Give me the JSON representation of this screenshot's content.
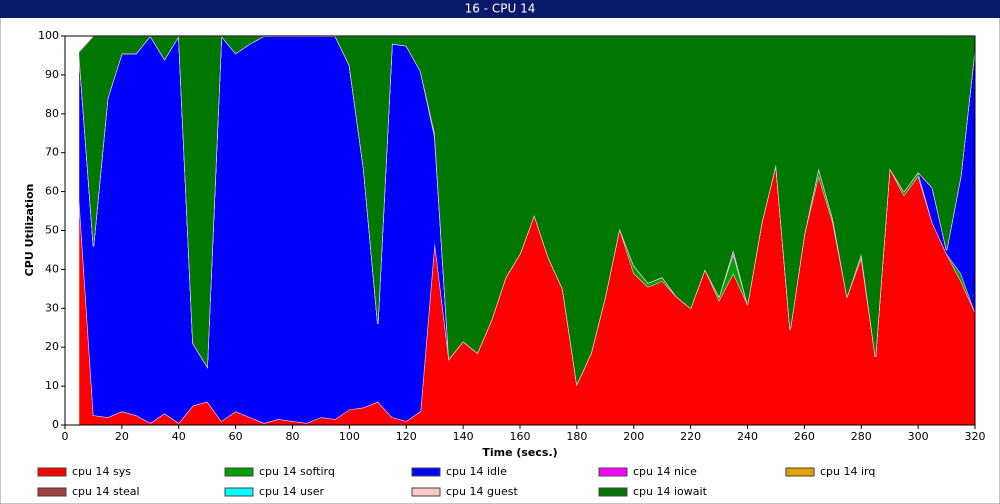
{
  "chart_data": {
    "type": "stacked_area",
    "title": "16 - CPU 14",
    "xlabel": "Time (secs.)",
    "ylabel": "CPU Utilization",
    "x": [
      5,
      10,
      15,
      20,
      25,
      30,
      35,
      40,
      45,
      50,
      55,
      60,
      65,
      70,
      75,
      80,
      85,
      90,
      95,
      100,
      105,
      110,
      115,
      120,
      125,
      130,
      135,
      140,
      145,
      150,
      155,
      160,
      165,
      170,
      175,
      180,
      185,
      190,
      195,
      200,
      205,
      210,
      215,
      220,
      225,
      230,
      235,
      240,
      245,
      250,
      255,
      260,
      265,
      270,
      275,
      280,
      285,
      290,
      295,
      300,
      305,
      310,
      315,
      320
    ],
    "xlim": [
      0,
      320
    ],
    "xticks": [
      0,
      20,
      40,
      60,
      80,
      100,
      120,
      140,
      160,
      180,
      200,
      220,
      240,
      260,
      280,
      300,
      320
    ],
    "ylim": [
      0,
      100
    ],
    "yticks": [
      0,
      10,
      20,
      30,
      40,
      50,
      60,
      70,
      80,
      90,
      100
    ],
    "series": [
      {
        "name": "cpu 14 sys",
        "color": "#ff0000",
        "values": [
          58,
          2.5,
          2,
          3.5,
          2.5,
          0.5,
          3,
          0.5,
          5,
          6,
          1,
          3.5,
          2,
          0.5,
          1.5,
          1,
          0.5,
          2,
          1.5,
          4,
          4.5,
          6,
          2,
          1,
          3.5,
          47,
          17,
          21.5,
          18.5,
          27,
          38,
          44,
          54,
          43,
          35,
          10.5,
          18.5,
          33,
          50.5,
          39,
          35.5,
          37,
          33,
          30,
          40,
          32,
          39,
          31,
          52,
          67,
          24.5,
          49,
          64,
          52,
          33,
          43,
          17.5,
          66,
          59,
          64,
          52,
          44,
          37,
          29
        ]
      },
      {
        "name": "cpu 14 softirq",
        "color": "#00a000",
        "values": [
          0,
          0,
          0,
          0,
          0,
          0,
          0,
          0,
          0,
          0,
          0,
          0,
          0,
          0,
          0,
          0,
          0,
          0,
          0,
          0,
          0,
          0,
          0,
          0,
          0,
          0,
          0,
          0,
          0,
          0,
          0,
          0,
          0,
          0,
          0,
          0,
          0,
          0,
          0,
          2,
          1,
          1,
          0,
          0,
          0,
          1,
          5,
          0,
          0,
          0,
          0,
          0,
          2,
          1,
          0,
          1,
          0,
          0,
          1,
          1,
          0,
          0,
          2,
          0
        ]
      },
      {
        "name": "cpu 14 idle",
        "color": "#0000ff",
        "values": [
          37,
          43.5,
          82,
          92,
          93,
          99.5,
          91,
          99.5,
          16,
          9,
          99,
          92,
          96,
          99.5,
          98.5,
          99,
          99.5,
          98,
          98.5,
          88.5,
          61.5,
          20,
          96,
          96.5,
          87.5,
          27,
          0,
          0,
          0,
          0,
          0,
          0,
          0,
          0,
          0,
          0,
          0,
          0,
          0,
          0,
          0,
          0,
          0,
          0,
          0,
          0,
          0,
          0,
          0,
          0,
          0,
          0,
          0,
          0,
          0,
          0,
          0,
          0,
          0,
          0,
          9,
          1,
          25,
          68
        ]
      },
      {
        "name": "cpu 14 nice",
        "color": "#ff00ff",
        "values": [
          0,
          0,
          0,
          0,
          0,
          0,
          0,
          0,
          0,
          0,
          0,
          0,
          0,
          0,
          0,
          0,
          0,
          0,
          0,
          0,
          0,
          0,
          0,
          0,
          0,
          1,
          0,
          0,
          0,
          0,
          0,
          0,
          0,
          0,
          0,
          0,
          0,
          0,
          0,
          0,
          0,
          0,
          0,
          0,
          0,
          0,
          1,
          0,
          0,
          0,
          0,
          0,
          0,
          0,
          0,
          0,
          0,
          0,
          0,
          0,
          0,
          0,
          0,
          0
        ]
      },
      {
        "name": "cpu 14 irq",
        "color": "#e8a000",
        "values": [
          0,
          0,
          0,
          0,
          0,
          0,
          0,
          0,
          0,
          0,
          0,
          0,
          0,
          0,
          0,
          0,
          0,
          0,
          0,
          0,
          0,
          0,
          0,
          0,
          0,
          0,
          0,
          0,
          0,
          0,
          0,
          0,
          0,
          0,
          0,
          0,
          0,
          0,
          0,
          0,
          0,
          0,
          0,
          0,
          0,
          0,
          0,
          0,
          0,
          0,
          0,
          0,
          0,
          0,
          0,
          0,
          0,
          0,
          0,
          0,
          0,
          0,
          0,
          0
        ]
      },
      {
        "name": "cpu 14 steal",
        "color": "#a04040",
        "values": [
          0,
          0,
          0,
          0,
          0,
          0,
          0,
          0,
          0,
          0,
          0,
          0,
          0,
          0,
          0,
          0,
          0,
          0,
          0,
          0,
          0,
          0,
          0,
          0,
          0,
          0,
          0,
          0,
          0,
          0,
          0,
          0,
          0,
          0,
          0,
          0,
          0,
          0,
          0,
          0,
          0,
          0,
          0,
          0,
          0,
          0,
          0,
          0,
          0,
          0,
          0,
          0,
          0,
          0,
          0,
          0,
          0,
          0,
          0,
          0,
          0,
          0,
          0,
          0
        ]
      },
      {
        "name": "cpu 14 user",
        "color": "#00ffff",
        "values": [
          0,
          0,
          0,
          0,
          0,
          0,
          0,
          0,
          0,
          0,
          0,
          0,
          0,
          0,
          0,
          0,
          0,
          0,
          0,
          0,
          0,
          0,
          0,
          0,
          0,
          0,
          0,
          0,
          0,
          0,
          0,
          0,
          0,
          0,
          0,
          0,
          0,
          0,
          0,
          0,
          0,
          0,
          0,
          0,
          0,
          0,
          0,
          0,
          0,
          0,
          0,
          0,
          0,
          0,
          0,
          0,
          0,
          0,
          0,
          0,
          0,
          0,
          0,
          0
        ]
      },
      {
        "name": "cpu 14 guest",
        "color": "#ffc8c8",
        "values": [
          0,
          0,
          0,
          0,
          0,
          0,
          0,
          0,
          0,
          0,
          0,
          0,
          0,
          0,
          0,
          0,
          0,
          0,
          0,
          0,
          0,
          0,
          0,
          0,
          0,
          0,
          0,
          0,
          0,
          0,
          0,
          0,
          0,
          0,
          0,
          0,
          0,
          0,
          0,
          0,
          0,
          0,
          0,
          0,
          0,
          0,
          0,
          0,
          0,
          0,
          0,
          0,
          0,
          0,
          0,
          0,
          0,
          0,
          0,
          0,
          0,
          0,
          0,
          0
        ]
      },
      {
        "name": "cpu 14 iowait",
        "color": "#007800",
        "values": [
          1,
          54,
          16,
          4.5,
          4.5,
          0,
          6,
          0,
          79,
          85,
          0,
          4.5,
          2,
          0,
          0,
          0,
          0,
          0,
          0,
          7.5,
          34,
          74,
          2,
          2.5,
          9,
          25,
          83,
          78.5,
          81.5,
          73,
          62,
          56,
          46,
          57,
          65,
          89.5,
          81.5,
          67,
          49.5,
          59,
          63.5,
          62,
          67,
          70,
          60,
          67,
          55,
          69,
          48,
          33,
          75.5,
          51,
          34,
          47,
          67,
          56,
          82.5,
          34,
          40,
          35,
          39,
          55,
          36,
          3
        ]
      }
    ]
  }
}
